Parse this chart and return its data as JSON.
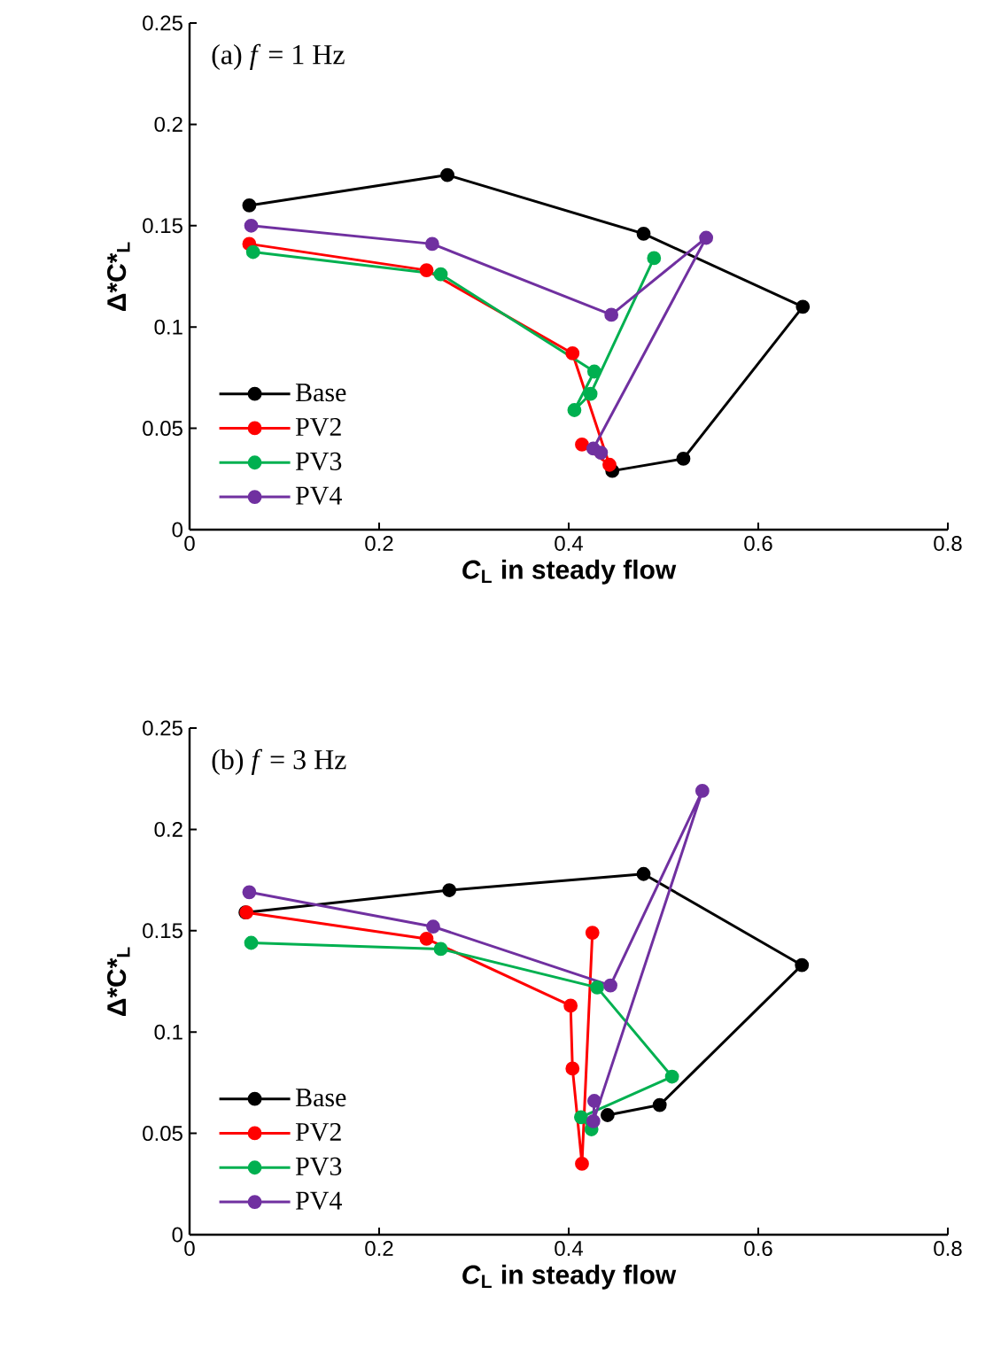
{
  "chart_data": [
    {
      "type": "line",
      "title": "(a) *f* = 1 Hz",
      "xlabel": "*C*$_{L}$ in steady flow",
      "ylabel": "Δ*C*$_{L}$",
      "xlim": [
        0,
        0.8
      ],
      "xticks": [
        0,
        0.2,
        0.4,
        0.6,
        0.8
      ],
      "ylim": [
        0,
        0.25
      ],
      "yticks": [
        0,
        0.05,
        0.1,
        0.15,
        0.2,
        0.25
      ],
      "grid": false,
      "legend": "bottom left",
      "marker": "circle",
      "line_style": "solid",
      "series": [
        {
          "name": "Base",
          "color": "#000000",
          "x": [
            0.063,
            0.272,
            0.479,
            0.647,
            0.521,
            0.446
          ],
          "values": [
            0.16,
            0.175,
            0.146,
            0.11,
            0.035,
            0.029
          ]
        },
        {
          "name": "PV2",
          "color": "#ff0000",
          "x": [
            0.063,
            0.25,
            0.404,
            0.443,
            0.414
          ],
          "values": [
            0.141,
            0.128,
            0.087,
            0.032,
            0.042
          ]
        },
        {
          "name": "PV3",
          "color": "#00b050",
          "x": [
            0.067,
            0.265,
            0.427,
            0.406,
            0.423,
            0.49
          ],
          "values": [
            0.137,
            0.126,
            0.078,
            0.059,
            0.067,
            0.134
          ]
        },
        {
          "name": "PV4",
          "color": "#7030a0",
          "x": [
            0.065,
            0.256,
            0.445,
            0.545,
            0.426,
            0.434
          ],
          "values": [
            0.15,
            0.141,
            0.106,
            0.144,
            0.04,
            0.038
          ]
        }
      ]
    },
    {
      "type": "line",
      "title": "(b) *f* = 3 Hz",
      "xlabel": "*C*$_{L}$ in steady flow",
      "ylabel": "Δ*C*$_{L}$",
      "xlim": [
        0,
        0.8
      ],
      "xticks": [
        0,
        0.2,
        0.4,
        0.6,
        0.8
      ],
      "ylim": [
        0,
        0.25
      ],
      "yticks": [
        0,
        0.05,
        0.1,
        0.15,
        0.2,
        0.25
      ],
      "grid": false,
      "legend": "bottom left",
      "marker": "circle",
      "line_style": "solid",
      "series": [
        {
          "name": "Base",
          "color": "#000000",
          "x": [
            0.059,
            0.274,
            0.479,
            0.646,
            0.496,
            0.441
          ],
          "values": [
            0.159,
            0.17,
            0.178,
            0.133,
            0.064,
            0.059
          ]
        },
        {
          "name": "PV2",
          "color": "#ff0000",
          "x": [
            0.06,
            0.25,
            0.402,
            0.404,
            0.414,
            0.425
          ],
          "values": [
            0.159,
            0.146,
            0.113,
            0.082,
            0.035,
            0.149
          ]
        },
        {
          "name": "PV3",
          "color": "#00b050",
          "x": [
            0.065,
            0.265,
            0.43,
            0.509,
            0.413,
            0.424
          ],
          "values": [
            0.144,
            0.141,
            0.122,
            0.078,
            0.058,
            0.052
          ]
        },
        {
          "name": "PV4",
          "color": "#7030a0",
          "x": [
            0.063,
            0.257,
            0.444,
            0.541,
            0.426,
            0.427
          ],
          "values": [
            0.169,
            0.152,
            0.123,
            0.219,
            0.056,
            0.066
          ]
        }
      ]
    }
  ]
}
